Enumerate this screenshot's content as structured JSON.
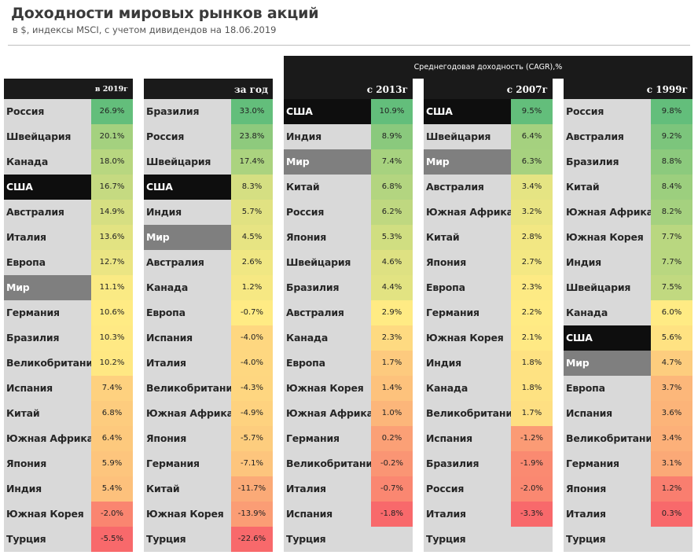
{
  "title": "Доходности мировых рынков акций",
  "subtitle": "в $, индексы MSCI, с учетом дивидендов на 18.06.2019",
  "cagr_label": "Среднегодовая доходность (CAGR),%",
  "chart_data": {
    "type": "table",
    "title": "Доходности мировых рынков акций",
    "subtitle": "в $, индексы MSCI, с учетом дивидендов на 18.06.2019",
    "group_header": "Среднегодовая доходность (CAGR),%",
    "color_scale": {
      "low": "#f8696b",
      "mid": "#ffeb84",
      "high": "#63be7b"
    },
    "highlight_colors": {
      "США": "#0e0e0e",
      "Мир": "#7f7f7f"
    },
    "columns": [
      {
        "header": "в 2019г",
        "rows": [
          {
            "name": "Россия",
            "value": "26.9%",
            "num": 26.9
          },
          {
            "name": "Швейцария",
            "value": "20.1%",
            "num": 20.1
          },
          {
            "name": "Канада",
            "value": "18.0%",
            "num": 18.0
          },
          {
            "name": "США",
            "value": "16.7%",
            "num": 16.7
          },
          {
            "name": "Австралия",
            "value": "14.9%",
            "num": 14.9
          },
          {
            "name": "Италия",
            "value": "13.6%",
            "num": 13.6
          },
          {
            "name": "Европа",
            "value": "12.7%",
            "num": 12.7
          },
          {
            "name": "Мир",
            "value": "11.1%",
            "num": 11.1
          },
          {
            "name": "Германия",
            "value": "10.6%",
            "num": 10.6
          },
          {
            "name": "Бразилия",
            "value": "10.3%",
            "num": 10.3
          },
          {
            "name": "Великобритания",
            "value": "10.2%",
            "num": 10.2
          },
          {
            "name": "Испания",
            "value": "7.4%",
            "num": 7.4
          },
          {
            "name": "Китай",
            "value": "6.8%",
            "num": 6.8
          },
          {
            "name": "Южная Африка",
            "value": "6.4%",
            "num": 6.4
          },
          {
            "name": "Япония",
            "value": "5.9%",
            "num": 5.9
          },
          {
            "name": "Индия",
            "value": "5.4%",
            "num": 5.4
          },
          {
            "name": "Южная Корея",
            "value": "-2.0%",
            "num": -2.0
          },
          {
            "name": "Турция",
            "value": "-5.5%",
            "num": -5.5
          }
        ]
      },
      {
        "header": "за год",
        "rows": [
          {
            "name": "Бразилия",
            "value": "33.0%",
            "num": 33.0
          },
          {
            "name": "Россия",
            "value": "23.8%",
            "num": 23.8
          },
          {
            "name": "Швейцария",
            "value": "17.4%",
            "num": 17.4
          },
          {
            "name": "США",
            "value": "8.3%",
            "num": 8.3
          },
          {
            "name": "Индия",
            "value": "5.7%",
            "num": 5.7
          },
          {
            "name": "Мир",
            "value": "4.5%",
            "num": 4.5
          },
          {
            "name": "Австралия",
            "value": "2.6%",
            "num": 2.6
          },
          {
            "name": "Канада",
            "value": "1.2%",
            "num": 1.2
          },
          {
            "name": "Европа",
            "value": "-0.7%",
            "num": -0.7
          },
          {
            "name": "Испания",
            "value": "-4.0%",
            "num": -4.0
          },
          {
            "name": "Италия",
            "value": "-4.0%",
            "num": -4.0
          },
          {
            "name": "Великобритания",
            "value": "-4.3%",
            "num": -4.3
          },
          {
            "name": "Южная Африка",
            "value": "-4.9%",
            "num": -4.9
          },
          {
            "name": "Япония",
            "value": "-5.7%",
            "num": -5.7
          },
          {
            "name": "Германия",
            "value": "-7.1%",
            "num": -7.1
          },
          {
            "name": "Китай",
            "value": "-11.7%",
            "num": -11.7
          },
          {
            "name": "Южная Корея",
            "value": "-13.9%",
            "num": -13.9
          },
          {
            "name": "Турция",
            "value": "-22.6%",
            "num": -22.6
          }
        ]
      },
      {
        "header": "с 2013г",
        "rows": [
          {
            "name": "США",
            "value": "10.9%",
            "num": 10.9
          },
          {
            "name": "Индия",
            "value": "8.9%",
            "num": 8.9
          },
          {
            "name": "Мир",
            "value": "7.4%",
            "num": 7.4
          },
          {
            "name": "Китай",
            "value": "6.8%",
            "num": 6.8
          },
          {
            "name": "Россия",
            "value": "6.2%",
            "num": 6.2
          },
          {
            "name": "Япония",
            "value": "5.3%",
            "num": 5.3
          },
          {
            "name": "Швейцария",
            "value": "4.6%",
            "num": 4.6
          },
          {
            "name": "Бразилия",
            "value": "4.4%",
            "num": 4.4
          },
          {
            "name": "Австралия",
            "value": "2.9%",
            "num": 2.9
          },
          {
            "name": "Канада",
            "value": "2.3%",
            "num": 2.3
          },
          {
            "name": "Европа",
            "value": "1.7%",
            "num": 1.7
          },
          {
            "name": "Южная Корея",
            "value": "1.4%",
            "num": 1.4
          },
          {
            "name": "Южная Африка",
            "value": "1.0%",
            "num": 1.0
          },
          {
            "name": "Германия",
            "value": "0.2%",
            "num": 0.2
          },
          {
            "name": "Великобритания",
            "value": "-0.2%",
            "num": -0.2
          },
          {
            "name": "Италия",
            "value": "-0.7%",
            "num": -0.7
          },
          {
            "name": "Испания",
            "value": "-1.8%",
            "num": -1.8
          },
          {
            "name": "Турция",
            "value": "",
            "num": null
          }
        ]
      },
      {
        "header": "с 2007г",
        "rows": [
          {
            "name": "США",
            "value": "9.5%",
            "num": 9.5
          },
          {
            "name": "Швейцария",
            "value": "6.4%",
            "num": 6.4
          },
          {
            "name": "Мир",
            "value": "6.3%",
            "num": 6.3
          },
          {
            "name": "Австралия",
            "value": "3.4%",
            "num": 3.4
          },
          {
            "name": "Южная Африка",
            "value": "3.2%",
            "num": 3.2
          },
          {
            "name": "Китай",
            "value": "2.8%",
            "num": 2.8
          },
          {
            "name": "Япония",
            "value": "2.7%",
            "num": 2.7
          },
          {
            "name": "Европа",
            "value": "2.3%",
            "num": 2.3
          },
          {
            "name": "Германия",
            "value": "2.2%",
            "num": 2.2
          },
          {
            "name": "Южная Корея",
            "value": "2.1%",
            "num": 2.1
          },
          {
            "name": "Индия",
            "value": "1.8%",
            "num": 1.8
          },
          {
            "name": "Канада",
            "value": "1.8%",
            "num": 1.8
          },
          {
            "name": "Великобритания",
            "value": "1.7%",
            "num": 1.7
          },
          {
            "name": "Испания",
            "value": "-1.2%",
            "num": -1.2
          },
          {
            "name": "Бразилия",
            "value": "-1.9%",
            "num": -1.9
          },
          {
            "name": "Россия",
            "value": "-2.0%",
            "num": -2.0
          },
          {
            "name": "Италия",
            "value": "-3.3%",
            "num": -3.3
          },
          {
            "name": "Турция",
            "value": "",
            "num": null
          }
        ]
      },
      {
        "header": "с 1999г",
        "rows": [
          {
            "name": "Россия",
            "value": "9.8%",
            "num": 9.8
          },
          {
            "name": "Австралия",
            "value": "9.2%",
            "num": 9.2
          },
          {
            "name": "Бразилия",
            "value": "8.8%",
            "num": 8.8
          },
          {
            "name": "Китай",
            "value": "8.4%",
            "num": 8.4
          },
          {
            "name": "Южная Африка",
            "value": "8.2%",
            "num": 8.2
          },
          {
            "name": "Южная Корея",
            "value": "7.7%",
            "num": 7.7
          },
          {
            "name": "Индия",
            "value": "7.7%",
            "num": 7.7
          },
          {
            "name": "Швейцария",
            "value": "7.5%",
            "num": 7.5
          },
          {
            "name": "Канада",
            "value": "6.0%",
            "num": 6.0
          },
          {
            "name": "США",
            "value": "5.6%",
            "num": 5.6
          },
          {
            "name": "Мир",
            "value": "4.7%",
            "num": 4.7
          },
          {
            "name": "Европа",
            "value": "3.7%",
            "num": 3.7
          },
          {
            "name": "Испания",
            "value": "3.6%",
            "num": 3.6
          },
          {
            "name": "Великобритания",
            "value": "3.4%",
            "num": 3.4
          },
          {
            "name": "Германия",
            "value": "3.1%",
            "num": 3.1
          },
          {
            "name": "Япония",
            "value": "1.2%",
            "num": 1.2
          },
          {
            "name": "Италия",
            "value": "0.3%",
            "num": 0.3
          },
          {
            "name": "Турция",
            "value": "",
            "num": null
          }
        ]
      }
    ]
  }
}
